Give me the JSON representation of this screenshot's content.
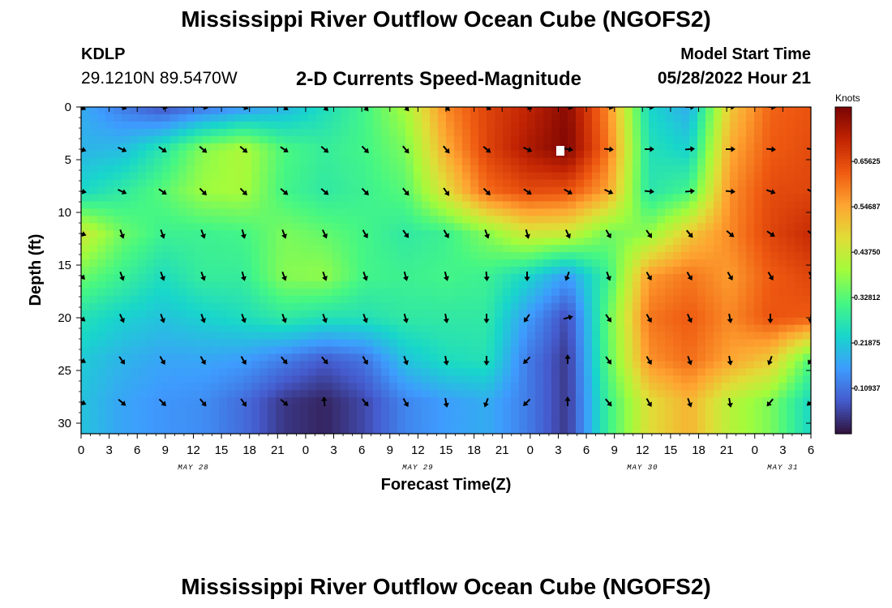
{
  "header": {
    "title": "Mississippi River Outflow Ocean Cube (NGOFS2)",
    "station_id": "KDLP",
    "station_coords": "29.1210N  89.5470W",
    "plot_title": "2-D Currents Speed-Magnitude",
    "model_start_label": "Model Start Time",
    "model_start_value": "05/28/2022 Hour 21"
  },
  "footer": {
    "title": "Mississippi River Outflow Ocean Cube (NGOFS2)"
  },
  "chart_data": {
    "type": "heatmap",
    "xlabel": "Forecast Time(Z)",
    "ylabel": "Depth (ft)",
    "x_range_hours": [
      0,
      78
    ],
    "ylim": [
      0,
      31
    ],
    "y_inverted": true,
    "x_tick_labels": [
      "0",
      "3",
      "6",
      "9",
      "12",
      "15",
      "18",
      "21",
      "0",
      "3",
      "6",
      "9",
      "12",
      "15",
      "18",
      "21",
      "0",
      "3",
      "6",
      "9",
      "12",
      "15",
      "18",
      "21",
      "0",
      "3",
      "6"
    ],
    "date_labels": [
      {
        "label": "MAY 28",
        "hour": 12
      },
      {
        "label": "MAY 29",
        "hour": 36
      },
      {
        "label": "MAY 30",
        "hour": 60
      },
      {
        "label": "MAY 31",
        "hour": 75
      }
    ],
    "y_ticks": [
      0,
      5,
      10,
      15,
      20,
      25,
      30
    ],
    "colorbar": {
      "title": "Knots",
      "tick_labels": [
        "0.65625",
        "0.54687",
        "0.43750",
        "0.32812",
        "0.21875",
        "0.10937"
      ],
      "tick_values": [
        0.65625,
        0.546875,
        0.4375,
        0.328125,
        0.21875,
        0.109375
      ],
      "range": [
        0,
        0.7875
      ],
      "colormap": "turbo"
    },
    "depths": [
      0,
      4,
      8,
      12,
      16,
      20,
      24,
      28
    ],
    "times": [
      0,
      4.33,
      8.67,
      13,
      17.33,
      21.67,
      26,
      30.33,
      34.67,
      39,
      43.33,
      47.67,
      52,
      56.33,
      60.67,
      65,
      69.33,
      73.67,
      78
    ],
    "speed_knots": [
      [
        0.18,
        0.12,
        0.07,
        0.11,
        0.15,
        0.19,
        0.25,
        0.31,
        0.4,
        0.58,
        0.66,
        0.71,
        0.77,
        0.58,
        0.24,
        0.18,
        0.5,
        0.62,
        0.64
      ],
      [
        0.19,
        0.2,
        0.27,
        0.37,
        0.41,
        0.32,
        0.29,
        0.31,
        0.36,
        0.54,
        0.66,
        0.73,
        0.78,
        0.6,
        0.26,
        0.23,
        0.54,
        0.63,
        0.65
      ],
      [
        0.24,
        0.28,
        0.33,
        0.39,
        0.4,
        0.31,
        0.28,
        0.3,
        0.33,
        0.47,
        0.61,
        0.65,
        0.64,
        0.55,
        0.27,
        0.31,
        0.57,
        0.65,
        0.66
      ],
      [
        0.45,
        0.35,
        0.3,
        0.3,
        0.31,
        0.36,
        0.34,
        0.31,
        0.28,
        0.3,
        0.37,
        0.45,
        0.44,
        0.35,
        0.38,
        0.5,
        0.58,
        0.66,
        0.7
      ],
      [
        0.35,
        0.3,
        0.25,
        0.29,
        0.29,
        0.37,
        0.38,
        0.31,
        0.3,
        0.31,
        0.3,
        0.24,
        0.16,
        0.3,
        0.56,
        0.6,
        0.56,
        0.63,
        0.66
      ],
      [
        0.26,
        0.23,
        0.21,
        0.23,
        0.25,
        0.28,
        0.26,
        0.26,
        0.28,
        0.28,
        0.28,
        0.16,
        0.06,
        0.34,
        0.6,
        0.63,
        0.58,
        0.64,
        0.63
      ],
      [
        0.22,
        0.19,
        0.17,
        0.17,
        0.16,
        0.12,
        0.08,
        0.11,
        0.21,
        0.25,
        0.26,
        0.12,
        0.04,
        0.33,
        0.57,
        0.61,
        0.55,
        0.5,
        0.32
      ],
      [
        0.21,
        0.17,
        0.15,
        0.14,
        0.1,
        0.04,
        0.02,
        0.06,
        0.13,
        0.16,
        0.18,
        0.12,
        0.04,
        0.3,
        0.47,
        0.53,
        0.42,
        0.36,
        0.24
      ]
    ],
    "direction_deg": [
      [
        120,
        110,
        100,
        100,
        110,
        125,
        135,
        140,
        140,
        135,
        120,
        110,
        100,
        100,
        95,
        90,
        90,
        95,
        100
      ],
      [
        110,
        115,
        125,
        130,
        130,
        125,
        130,
        135,
        140,
        140,
        130,
        115,
        100,
        95,
        90,
        85,
        90,
        95,
        100
      ],
      [
        100,
        115,
        125,
        135,
        135,
        130,
        130,
        135,
        140,
        145,
        135,
        125,
        120,
        115,
        95,
        85,
        95,
        110,
        120
      ],
      [
        110,
        160,
        160,
        160,
        165,
        160,
        155,
        150,
        145,
        150,
        160,
        165,
        155,
        150,
        145,
        140,
        130,
        125,
        130
      ],
      [
        135,
        160,
        160,
        160,
        165,
        160,
        160,
        160,
        165,
        165,
        175,
        180,
        200,
        160,
        150,
        150,
        150,
        150,
        155
      ],
      [
        130,
        155,
        160,
        160,
        160,
        160,
        160,
        160,
        165,
        170,
        180,
        215,
        75,
        145,
        150,
        155,
        170,
        180,
        185
      ],
      [
        120,
        145,
        150,
        150,
        150,
        140,
        140,
        150,
        160,
        170,
        180,
        225,
        0,
        145,
        150,
        160,
        170,
        200,
        210
      ],
      [
        115,
        130,
        135,
        140,
        145,
        130,
        355,
        140,
        150,
        170,
        200,
        225,
        0,
        140,
        150,
        160,
        170,
        220,
        230
      ]
    ]
  }
}
